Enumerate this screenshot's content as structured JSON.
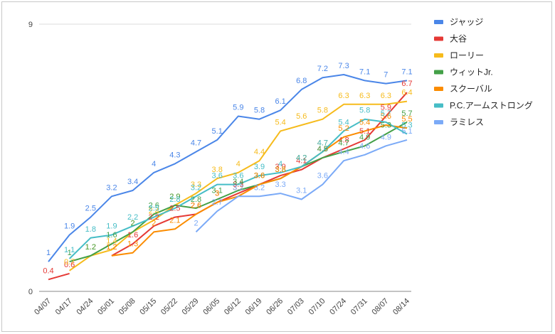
{
  "chart_data": {
    "type": "line",
    "title": "",
    "xlabel": "",
    "ylabel": "",
    "ylim": [
      0,
      9
    ],
    "yticks": [
      "0",
      "9"
    ],
    "grid": true,
    "legend": "right",
    "categories": [
      "04/07",
      "04/17",
      "04/24",
      "05/01",
      "05/08",
      "05/15",
      "05/22",
      "05/29",
      "06/05",
      "06/12",
      "06/19",
      "06/26",
      "07/03",
      "07/10",
      "07/24",
      "07/31",
      "08/07",
      "08/14"
    ],
    "series": [
      {
        "name": "ジャッジ",
        "color": "#4a86e8",
        "values": [
          1.0,
          1.9,
          2.5,
          3.2,
          3.4,
          4.0,
          4.3,
          4.7,
          5.1,
          5.9,
          5.8,
          6.1,
          6.8,
          7.2,
          7.3,
          7.1,
          7.0,
          7.1
        ]
      },
      {
        "name": "大谷",
        "color": "#e53935",
        "values": [
          0.4,
          0.6,
          null,
          1.2,
          1.6,
          2.2,
          2.5,
          2.6,
          3.0,
          3.3,
          3.6,
          3.9,
          4.1,
          4.5,
          4.8,
          5.1,
          5.9,
          6.7
        ]
      },
      {
        "name": "ローリー",
        "color": "#f6bb1c",
        "values": [
          null,
          0.7,
          1.2,
          1.4,
          2.0,
          2.4,
          2.9,
          3.3,
          3.8,
          4.0,
          4.4,
          5.4,
          5.6,
          5.8,
          6.3,
          6.3,
          6.3,
          6.4
        ]
      },
      {
        "name": "ウィットJr.",
        "color": "#43a047",
        "values": [
          null,
          1.0,
          1.2,
          1.6,
          2.0,
          2.6,
          2.9,
          2.8,
          3.1,
          3.4,
          3.6,
          3.8,
          4.2,
          4.5,
          4.7,
          4.9,
          5.3,
          5.7
        ]
      },
      {
        "name": "スクーバル",
        "color": "#fb8c00",
        "values": [
          null,
          null,
          null,
          1.2,
          1.3,
          2.0,
          2.1,
          2.6,
          3.0,
          3.2,
          3.6,
          3.8,
          4.2,
          4.7,
          5.2,
          5.4,
          5.6,
          5.5
        ]
      },
      {
        "name": "P.C.アームストロング",
        "color": "#46bdc6",
        "values": [
          null,
          1.1,
          1.8,
          1.9,
          2.2,
          2.5,
          2.8,
          3.2,
          3.6,
          3.6,
          3.9,
          4.0,
          4.2,
          4.7,
          5.4,
          5.8,
          5.7,
          5.3
        ]
      },
      {
        "name": "ラミレス",
        "color": "#7baaf7",
        "values": [
          null,
          null,
          null,
          null,
          null,
          null,
          null,
          2.0,
          2.7,
          3.2,
          3.2,
          3.3,
          3.1,
          3.6,
          4.4,
          4.6,
          4.9,
          5.1
        ]
      }
    ]
  }
}
